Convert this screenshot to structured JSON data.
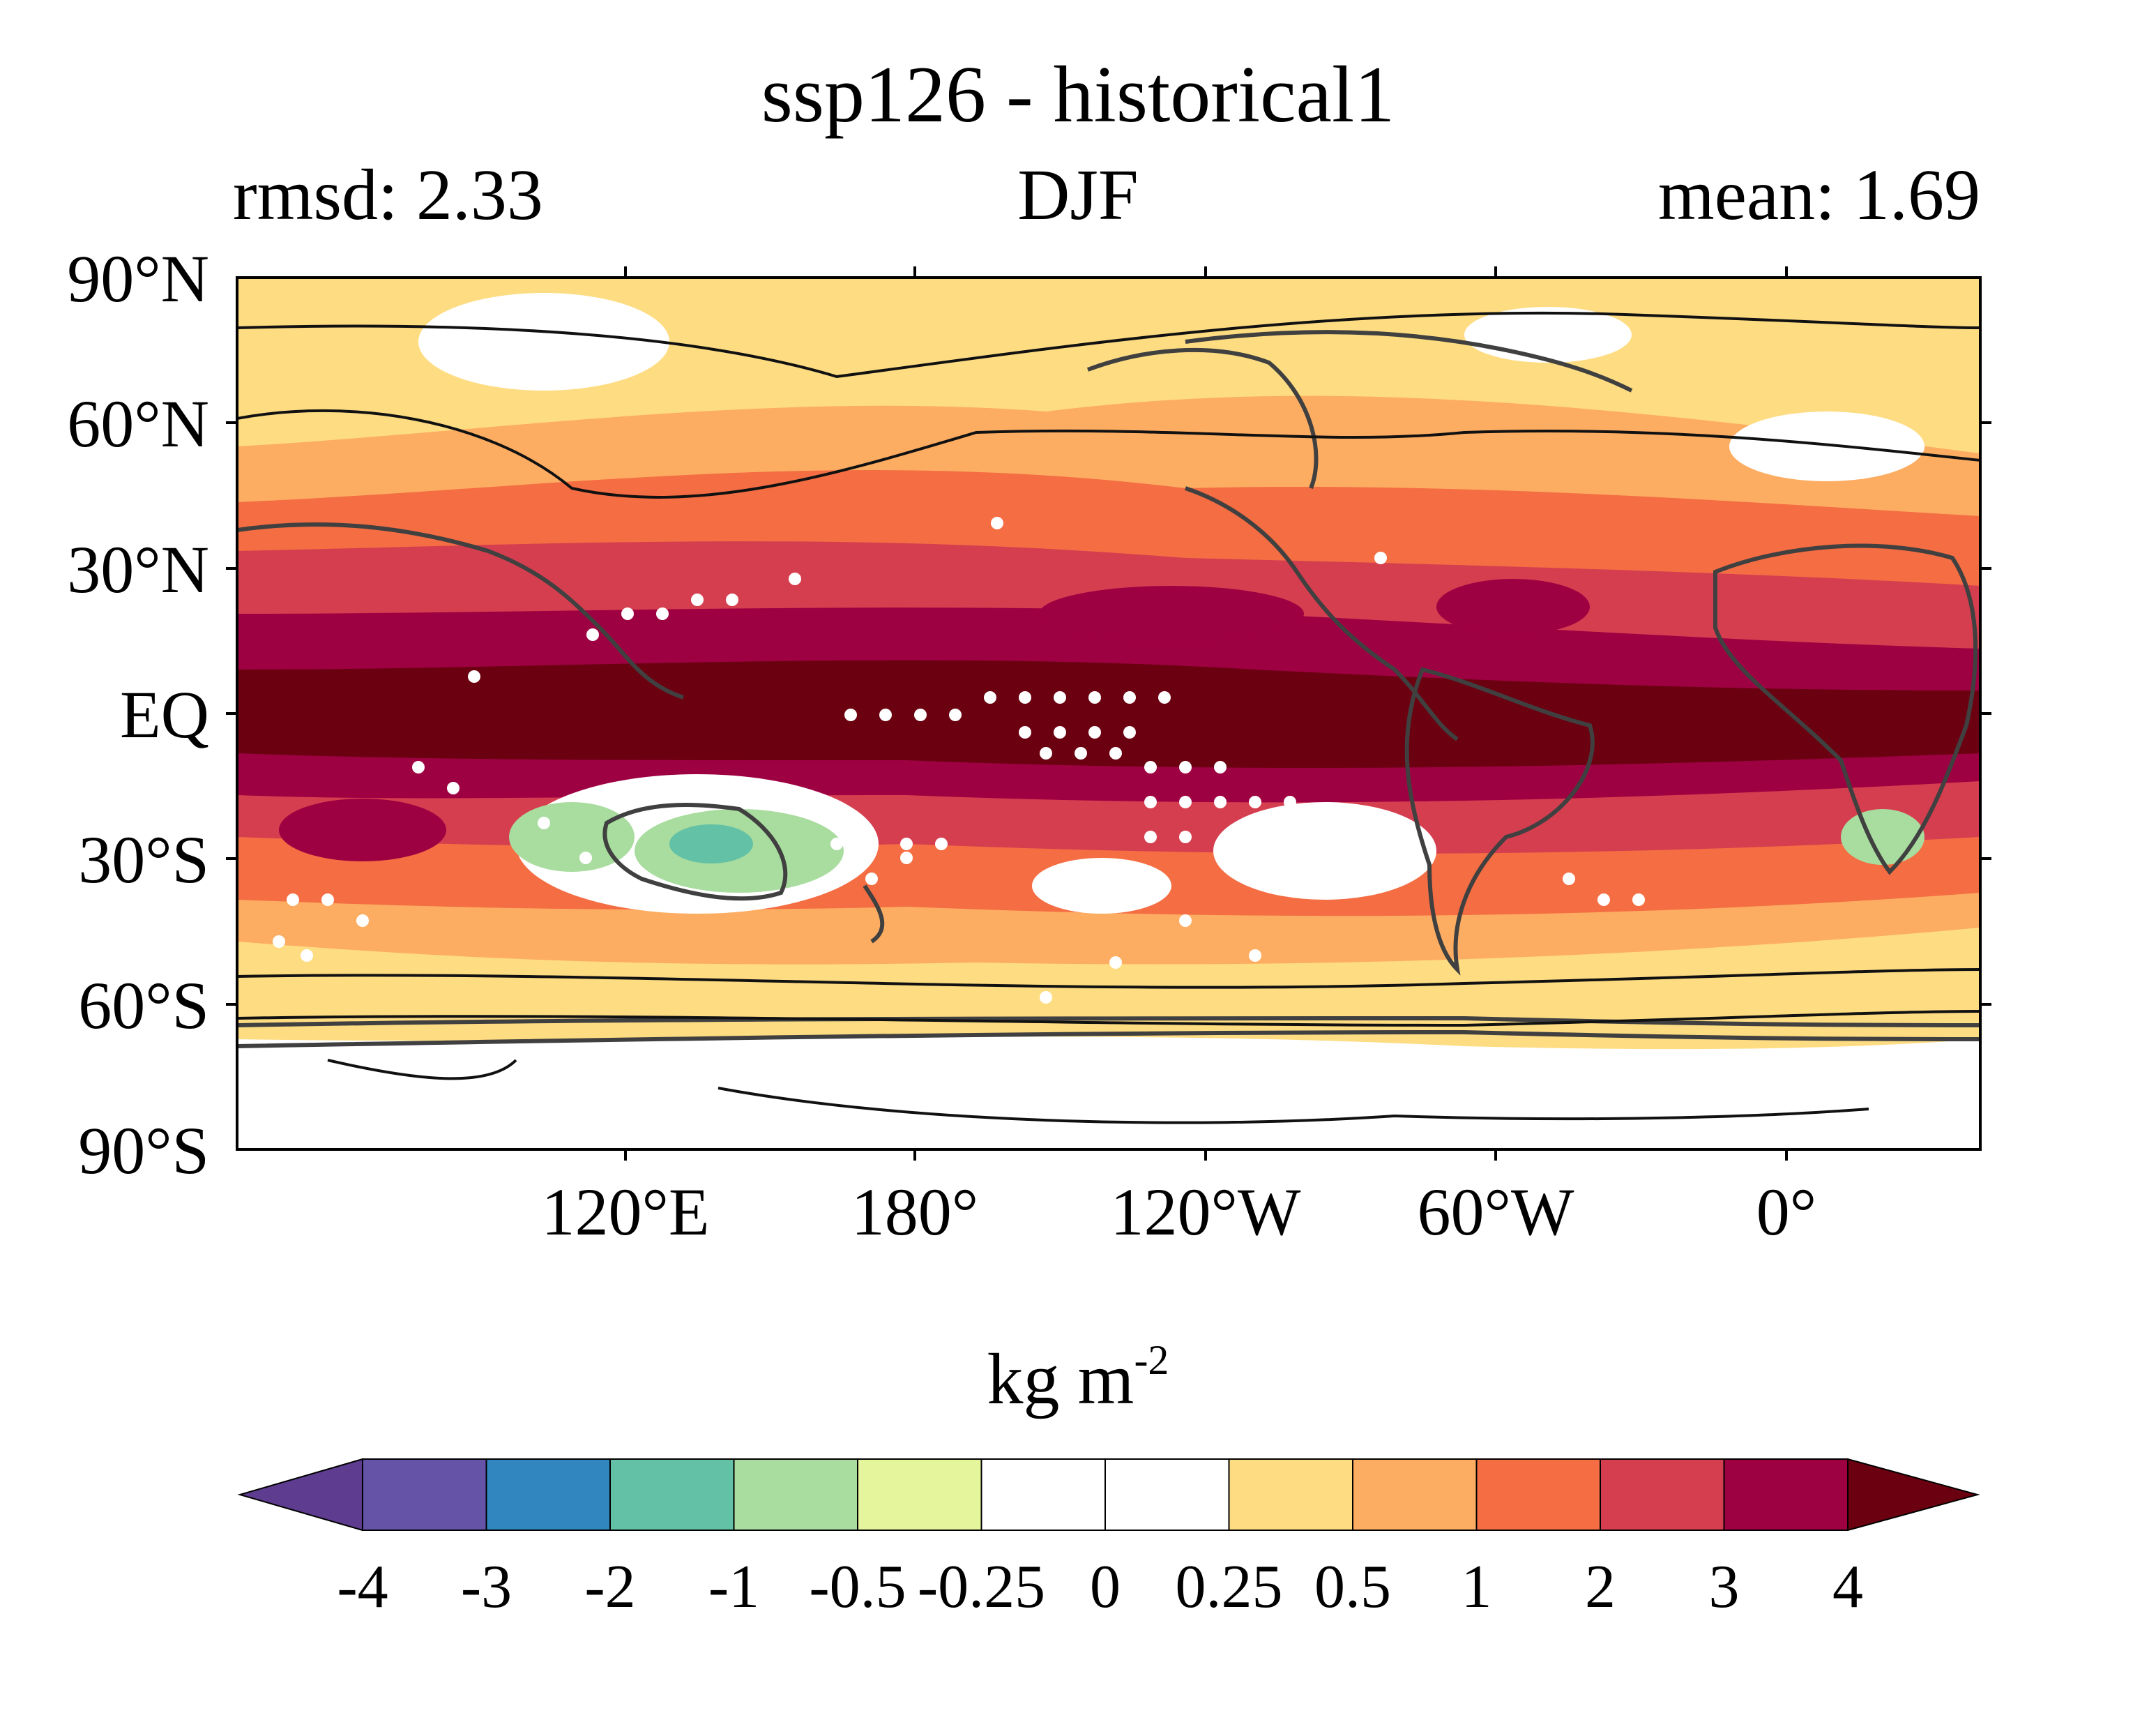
{
  "title": "ssp126 - historical1",
  "left_string": "rmsd: 2.33",
  "center_string": "DJF",
  "right_string": "mean: 1.69",
  "latitude_labels": [
    "90°N",
    "60°N",
    "30°N",
    "EQ",
    "30°S",
    "60°S",
    "90°S"
  ],
  "longitude_labels": [
    "120°E",
    "180°",
    "120°W",
    "60°W",
    "0°"
  ],
  "colorbar": {
    "units_base": "kg m",
    "units_exponent": "-2",
    "tick_labels": [
      "-4",
      "-3",
      "-2",
      "-1",
      "-0.5",
      "-0.25",
      "0",
      "0.25",
      "0.5",
      "1",
      "2",
      "3",
      "4"
    ],
    "colors": [
      "#5e3c8f",
      "#6553a8",
      "#3186bf",
      "#63c1a5",
      "#a9dc9f",
      "#e5f59b",
      "#ffffff",
      "#ffffff",
      "#fedc82",
      "#fdad62",
      "#f46d43",
      "#d53e4f",
      "#9e0142",
      "#6a0010"
    ]
  },
  "map": {
    "projection": "cylindrical equidistant",
    "central_longitude": "150°W",
    "field": "difference field, filled contours",
    "overlays": [
      "coastlines",
      "black contour lines",
      "white stippling dots"
    ]
  }
}
